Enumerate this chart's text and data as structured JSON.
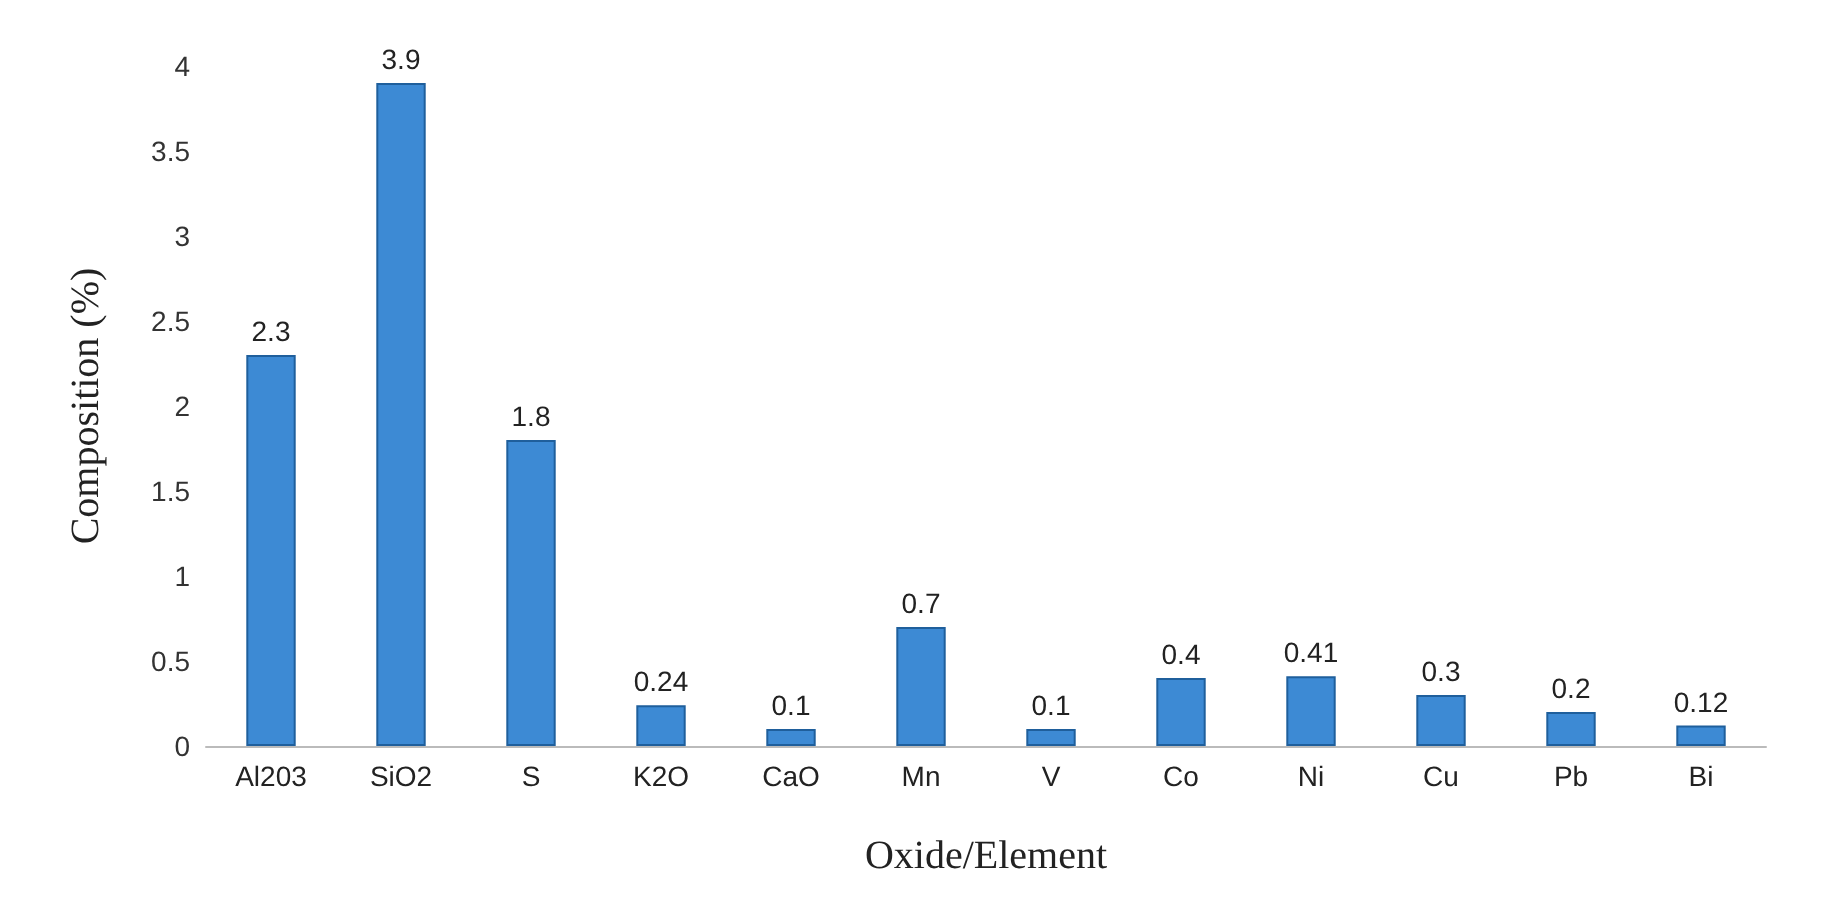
{
  "chart_data": {
    "type": "bar",
    "xlabel": "Oxide/Element",
    "ylabel": "Composition (%)",
    "categories": [
      "Al203",
      "SiO2",
      "S",
      "K2O",
      "CaO",
      "Mn",
      "V",
      "Co",
      "Ni",
      "Cu",
      "Pb",
      "Bi"
    ],
    "values": [
      2.3,
      3.9,
      1.8,
      0.24,
      0.1,
      0.7,
      0.1,
      0.4,
      0.41,
      0.3,
      0.2,
      0.12
    ],
    "color": "#3d8ad4",
    "ylim": [
      0,
      4
    ],
    "yticks": [
      0,
      0.5,
      1,
      1.5,
      2,
      2.5,
      3,
      3.5,
      4
    ],
    "grid": false,
    "data_labels": true
  }
}
